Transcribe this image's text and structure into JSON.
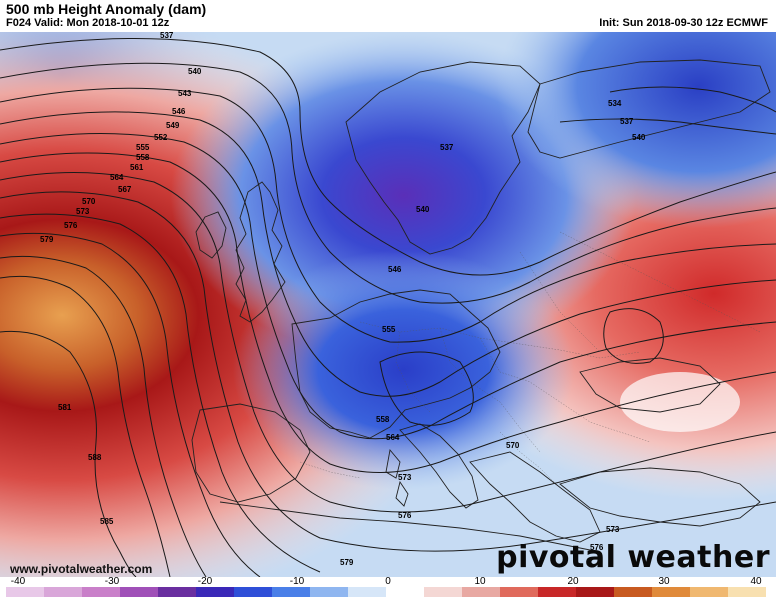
{
  "header": {
    "title": "500 mb Height Anomaly (dam)",
    "valid": "F024 Valid: Mon 2018-10-01 12z",
    "init": "Init: Sun 2018-09-30 12z ECMWF"
  },
  "watermark": {
    "url": "www.pivotalweather.com",
    "logo": "pivotal weather"
  },
  "colorbar": {
    "ticks": [
      "-40",
      "-30",
      "-20",
      "-10",
      "0",
      "10",
      "20",
      "30",
      "40"
    ],
    "colors": [
      "#e8c8e8",
      "#d9a6d9",
      "#c97fc9",
      "#a050b8",
      "#6a2fa0",
      "#3a28b8",
      "#2f4fd8",
      "#4a7fe8",
      "#8fb6f0",
      "#d6e6f8",
      "#ffffff",
      "#f4d7d4",
      "#e8a8a2",
      "#e06a5c",
      "#c82828",
      "#a81818",
      "#c85a20",
      "#e08a3a",
      "#f0b870",
      "#f8e0b0"
    ]
  },
  "contour_labels": [
    "537",
    "540",
    "543",
    "546",
    "549",
    "552",
    "555",
    "558",
    "561",
    "564",
    "567",
    "570",
    "573",
    "576",
    "579",
    "581",
    "588",
    "585",
    "534",
    "537",
    "540",
    "537",
    "540",
    "546",
    "555",
    "558",
    "564",
    "570",
    "573",
    "576",
    "573",
    "579",
    "576"
  ]
}
